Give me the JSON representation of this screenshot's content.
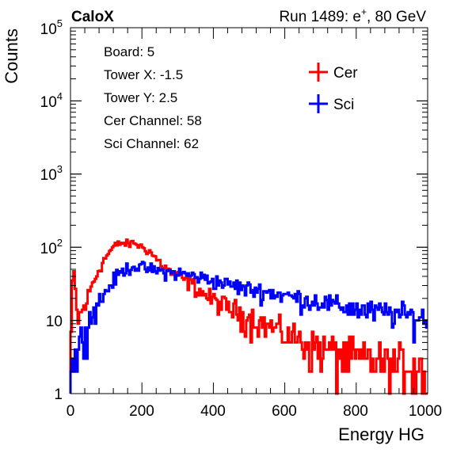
{
  "header": {
    "experiment": "CaloX",
    "run_info_prefix": "Run 1489: e",
    "run_info_sup": "+",
    "run_info_suffix": ", 80 GeV"
  },
  "info_box": {
    "lines": [
      "Board: 5",
      "Tower X: -1.5",
      "Tower Y: 2.5",
      "Cer Channel: 58",
      "Sci Channel: 62"
    ]
  },
  "chart_data": {
    "type": "line",
    "style": "step-histogram",
    "xlabel": "Energy HG",
    "ylabel": "Counts",
    "xlim": [
      0,
      1000
    ],
    "ylim": [
      1,
      100000
    ],
    "yscale": "log",
    "grid": false,
    "legend_position": "top-right",
    "x_ticks": [
      "0",
      "200",
      "400",
      "600",
      "800",
      "1000"
    ],
    "y_ticks": [
      {
        "base": "1",
        "exp": ""
      },
      {
        "base": "10",
        "exp": ""
      },
      {
        "base": "10",
        "exp": "2"
      },
      {
        "base": "10",
        "exp": "3"
      },
      {
        "base": "10",
        "exp": "4"
      },
      {
        "base": "10",
        "exp": "5"
      }
    ],
    "bin_width": 4,
    "series": [
      {
        "name": "Cer",
        "color": "#ff0000",
        "x": [
          0,
          8,
          20,
          40,
          60,
          80,
          100,
          120,
          140,
          160,
          180,
          200,
          220,
          240,
          260,
          280,
          300,
          320,
          340,
          360,
          380,
          400,
          420,
          440,
          460,
          480,
          500,
          520,
          540,
          560,
          580,
          600,
          620,
          640,
          660,
          680,
          700,
          720,
          740,
          760,
          780,
          800,
          820,
          840,
          860,
          880,
          900,
          920,
          940,
          960,
          980,
          1000
        ],
        "values": [
          3,
          60,
          10,
          15,
          30,
          50,
          75,
          100,
          115,
          110,
          115,
          100,
          90,
          70,
          55,
          45,
          40,
          36,
          32,
          26,
          22,
          19,
          17,
          15,
          14,
          12,
          11,
          10,
          9,
          8,
          7.5,
          6.5,
          6,
          5.5,
          5,
          4.5,
          4.2,
          4,
          3.8,
          3.5,
          3.3,
          3.2,
          3,
          3,
          2.8,
          2.7,
          2.6,
          2.5,
          2.5,
          2.4,
          2.3,
          2.2
        ]
      },
      {
        "name": "Sci",
        "color": "#0000ff",
        "x": [
          0,
          20,
          40,
          60,
          80,
          100,
          120,
          140,
          160,
          180,
          200,
          220,
          240,
          260,
          280,
          300,
          320,
          340,
          360,
          380,
          400,
          420,
          440,
          460,
          480,
          500,
          520,
          540,
          560,
          580,
          600,
          620,
          640,
          660,
          680,
          700,
          720,
          740,
          760,
          780,
          800,
          820,
          840,
          860,
          880,
          900,
          920,
          940,
          960,
          980,
          1000
        ],
        "values": [
          2,
          4,
          8,
          12,
          18,
          25,
          35,
          45,
          52,
          55,
          53,
          50,
          48,
          46,
          45,
          44,
          43,
          41,
          39,
          37,
          35,
          33,
          31,
          30,
          28,
          27,
          26,
          25,
          24,
          23,
          22,
          21,
          20,
          19,
          18.5,
          18,
          17,
          16,
          15.5,
          15,
          14.5,
          14,
          13.5,
          13,
          13,
          12.5,
          12,
          12,
          11.5,
          11,
          11
        ]
      }
    ]
  }
}
